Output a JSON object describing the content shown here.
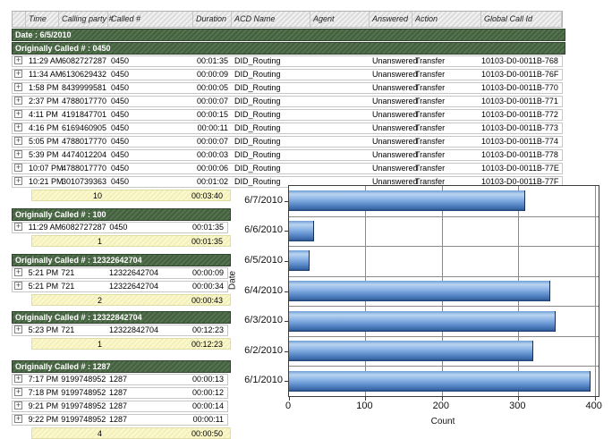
{
  "table": {
    "columns": [
      "",
      "Time",
      "Calling party #",
      "Called #",
      "Duration",
      "ACD Name",
      "Agent",
      "Answered",
      "Action",
      "Global Call Id"
    ],
    "date_header": "Date : 6/5/2010",
    "expand_glyph": "+",
    "groups": [
      {
        "header": "Originally Called # : 0450",
        "rows": [
          {
            "time": "11:29 AM",
            "calling": "6082727287",
            "called": "0450",
            "duration": "00:01:35",
            "acd": "DID_Routing",
            "agent": "",
            "answered": "Unanswered",
            "action": "Transfer",
            "gcid": "10103-D0-0011B-768"
          },
          {
            "time": "11:34 AM",
            "calling": "6130629432",
            "called": "0450",
            "duration": "00:00:09",
            "acd": "DID_Routing",
            "agent": "",
            "answered": "Unanswered",
            "action": "Transfer",
            "gcid": "10103-D0-0011B-76F"
          },
          {
            "time": "1:58 PM",
            "calling": "8439999581",
            "called": "0450",
            "duration": "00:00:05",
            "acd": "DID_Routing",
            "agent": "",
            "answered": "Unanswered",
            "action": "Transfer",
            "gcid": "10103-D0-0011B-770"
          },
          {
            "time": "2:37 PM",
            "calling": "4788017770",
            "called": "0450",
            "duration": "00:00:07",
            "acd": "DID_Routing",
            "agent": "",
            "answered": "Unanswered",
            "action": "Transfer",
            "gcid": "10103-D0-0011B-771"
          },
          {
            "time": "4:11 PM",
            "calling": "4191847701",
            "called": "0450",
            "duration": "00:00:15",
            "acd": "DID_Routing",
            "agent": "",
            "answered": "Unanswered",
            "action": "Transfer",
            "gcid": "10103-D0-0011B-772"
          },
          {
            "time": "4:16 PM",
            "calling": "6169460905",
            "called": "0450",
            "duration": "00:00:11",
            "acd": "DID_Routing",
            "agent": "",
            "answered": "Unanswered",
            "action": "Transfer",
            "gcid": "10103-D0-0011B-773"
          },
          {
            "time": "5:05 PM",
            "calling": "4788017770",
            "called": "0450",
            "duration": "00:00:07",
            "acd": "DID_Routing",
            "agent": "",
            "answered": "Unanswered",
            "action": "Transfer",
            "gcid": "10103-D0-0011B-774"
          },
          {
            "time": "5:39 PM",
            "calling": "4474012204",
            "called": "0450",
            "duration": "00:00:03",
            "acd": "DID_Routing",
            "agent": "",
            "answered": "Unanswered",
            "action": "Transfer",
            "gcid": "10103-D0-0011B-778"
          },
          {
            "time": "10:07 PM",
            "calling": "4788017770",
            "called": "0450",
            "duration": "00:00:06",
            "acd": "DID_Routing",
            "agent": "",
            "answered": "Unanswered",
            "action": "Transfer",
            "gcid": "10103-D0-0011B-77E"
          },
          {
            "time": "10:21 PM",
            "calling": "3010739363",
            "called": "0450",
            "duration": "00:01:02",
            "acd": "DID_Routing",
            "agent": "",
            "answered": "Unanswered",
            "action": "Transfer",
            "gcid": "10103-D0-0011B-77F"
          }
        ],
        "summary": {
          "count": "10",
          "duration": "00:03:40"
        }
      },
      {
        "header": "Originally Called # : 100",
        "rows": [
          {
            "time": "11:29 AM",
            "calling": "6082727287",
            "called": "0450",
            "duration": "00:01:35"
          }
        ],
        "summary": {
          "count": "1",
          "duration": "00:01:35"
        }
      },
      {
        "header": "Originally Called # : 12322642704",
        "rows": [
          {
            "time": "5:21 PM",
            "calling": "721",
            "called": "12322642704",
            "duration": "00:00:09"
          },
          {
            "time": "5:21 PM",
            "calling": "721",
            "called": "12322642704",
            "duration": "00:00:34"
          }
        ],
        "summary": {
          "count": "2",
          "duration": "00:00:43"
        }
      },
      {
        "header": "Originally Called # : 12322842704",
        "rows": [
          {
            "time": "5:23 PM",
            "calling": "721",
            "called": "12322842704",
            "duration": "00:12:23"
          }
        ],
        "summary": {
          "count": "1",
          "duration": "00:12:23"
        }
      },
      {
        "header": "Originally Called # : 1287",
        "rows": [
          {
            "time": "7:17 PM",
            "calling": "9199748952",
            "called": "1287",
            "duration": "00:00:13"
          },
          {
            "time": "7:18 PM",
            "calling": "9199748952",
            "called": "1287",
            "duration": "00:00:12"
          },
          {
            "time": "9:21 PM",
            "calling": "9199748952",
            "called": "1287",
            "duration": "00:00:14"
          },
          {
            "time": "9:22 PM",
            "calling": "9199748952",
            "called": "1287",
            "duration": "00:00:11"
          }
        ],
        "summary": {
          "count": "4",
          "duration": "00:00:50"
        }
      }
    ]
  },
  "chart_data": {
    "type": "bar",
    "orientation": "horizontal",
    "categories": [
      "6/7/2010",
      "6/6/2010",
      "6/5/2010",
      "6/4/2010",
      "6/3/2010",
      "6/2/2010",
      "6/1/2010"
    ],
    "values": [
      308,
      32,
      26,
      341,
      348,
      318,
      393
    ],
    "title": "",
    "xlabel": "Count",
    "ylabel": "Date",
    "xlim": [
      0,
      405
    ],
    "xticks": [
      0,
      100,
      200,
      300,
      400
    ],
    "grid": true,
    "legend": "none",
    "bar_color_top": "#b9d4f0",
    "bar_color_mid": "#5585c6",
    "bar_color_edge": "#1d3e6e"
  },
  "colors": {
    "group_header_green": "#4a6545",
    "summary_yellow": "#f7f4c4",
    "header_gray": "#e5e5e5"
  }
}
